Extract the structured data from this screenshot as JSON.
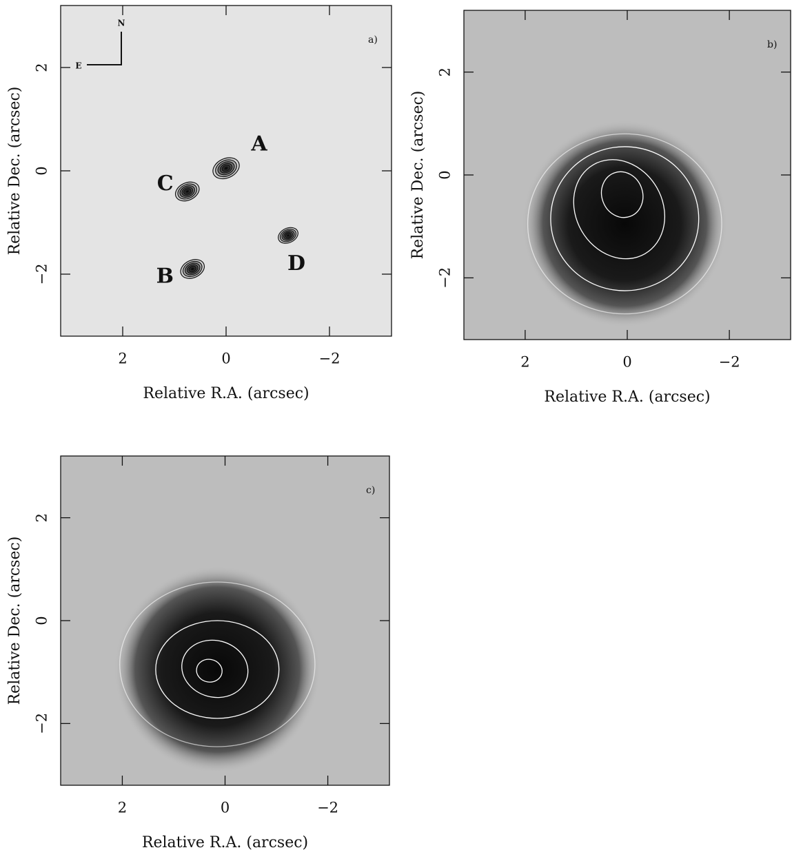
{
  "chart_data": [
    {
      "type": "image",
      "panel_label": "a)",
      "xlabel": "Relative R.A. (arcsec)",
      "ylabel": "Relative Dec. (arcsec)",
      "xlim": [
        3.2,
        -3.2
      ],
      "ylim": [
        -3.2,
        3.2
      ],
      "xticks": [
        2,
        0,
        {
          "value": -2,
          "label": "−2"
        }
      ],
      "yticks": [
        {
          "value": -2,
          "label": "−2"
        },
        0,
        2
      ],
      "compass": {
        "north": "N",
        "east": "E"
      },
      "sources": [
        {
          "label": "A",
          "x": 0,
          "y": 0.05
        },
        {
          "label": "B",
          "x": 0.65,
          "y": -1.9
        },
        {
          "label": "C",
          "x": 0.75,
          "y": -0.4
        },
        {
          "label": "D",
          "x": -1.2,
          "y": -1.25
        }
      ]
    },
    {
      "type": "image",
      "panel_label": "b)",
      "xlabel": "Relative R.A. (arcsec)",
      "ylabel": "Relative Dec. (arcsec)",
      "xlim": [
        3.2,
        -3.2
      ],
      "ylim": [
        -3.2,
        3.2
      ],
      "xticks": [
        2,
        0,
        {
          "value": -2,
          "label": "−2"
        }
      ],
      "yticks": [
        {
          "value": -2,
          "label": "−2"
        },
        0,
        2
      ]
    },
    {
      "type": "image",
      "panel_label": "c)",
      "xlabel": "Relative R.A. (arcsec)",
      "ylabel": "Relative Dec. (arcsec)",
      "xlim": [
        3.2,
        -3.2
      ],
      "ylim": [
        -3.2,
        3.2
      ],
      "xticks": [
        2,
        0,
        {
          "value": -2,
          "label": "−2"
        }
      ],
      "yticks": [
        {
          "value": -2,
          "label": "−2"
        },
        0,
        2
      ]
    }
  ]
}
